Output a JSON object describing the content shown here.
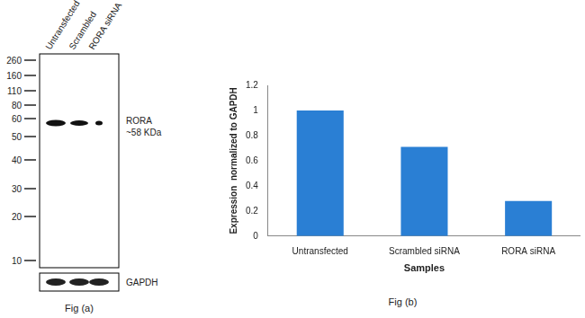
{
  "blot": {
    "lanes": [
      "Untransfected",
      "Scrambled",
      "RORA siRNA"
    ],
    "markers": [
      260,
      160,
      110,
      80,
      60,
      50,
      40,
      30,
      20,
      10
    ],
    "band_label": "RORA",
    "band_size": "~58 KDa",
    "loading_control": "GAPDH",
    "caption": "Fig (a)"
  },
  "chart_data": {
    "type": "bar",
    "categories": [
      "Untransfected",
      "Scrambled siRNA",
      "RORA siRNA"
    ],
    "values": [
      1,
      0.71,
      0.28
    ],
    "color": "#2a7fd4",
    "x_label": "Samples",
    "y_label": "Expression  normalized to GAPDH",
    "ylim": [
      0,
      1.2
    ],
    "yticks": [
      0,
      0.2,
      0.4,
      0.6,
      0.8,
      1,
      1.2
    ],
    "grid": false,
    "caption": "Fig (b)"
  }
}
